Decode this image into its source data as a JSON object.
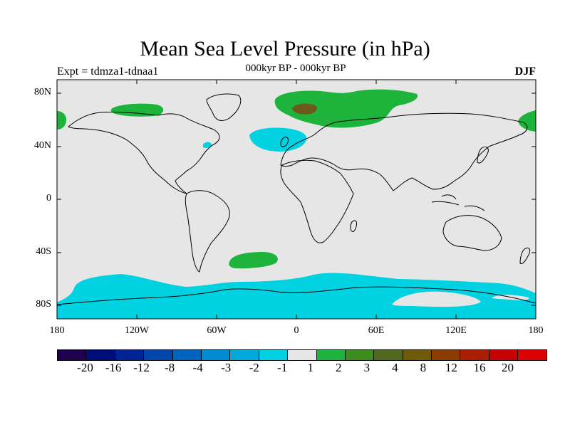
{
  "title": "Mean Sea Level Pressure (in hPa)",
  "subtitle": "000kyr BP - 000kyr BP",
  "left_label": "Expt = tdmza1-tdnaa1",
  "right_label": "DJF",
  "lat_labels": [
    "80N",
    "40N",
    "0",
    "40S",
    "80S"
  ],
  "lon_labels": [
    "180",
    "120W",
    "60W",
    "0",
    "60E",
    "120E",
    "180"
  ],
  "colors": {
    "background": "#e6e6e6",
    "cyan": "#00d2e1",
    "green": "#1eb43c",
    "brown": "#6b5a1c"
  },
  "colorbar": {
    "colors": [
      "#1e0050",
      "#000c78",
      "#002496",
      "#0046aa",
      "#0064be",
      "#008cd2",
      "#00aadc",
      "#00d2e1",
      "#e6e6e6",
      "#1eb43c",
      "#3c8c1e",
      "#50691e",
      "#6e5a0a",
      "#8c3c00",
      "#aa1e00",
      "#c80000",
      "#dc0000"
    ],
    "labels": [
      "-20",
      "-16",
      "-12",
      "-8",
      "-4",
      "-3",
      "-2",
      "-1",
      "1",
      "2",
      "3",
      "4",
      "8",
      "12",
      "16",
      "20"
    ]
  }
}
